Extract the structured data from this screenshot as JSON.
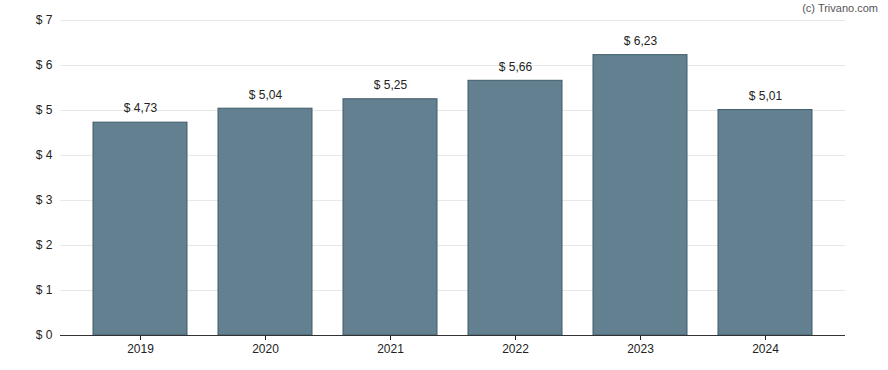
{
  "chart_data": {
    "type": "bar",
    "annotations": [
      "(c) Trivano.com"
    ],
    "categories": [
      "2019",
      "2020",
      "2021",
      "2022",
      "2023",
      "2024"
    ],
    "values": [
      4.73,
      5.04,
      5.25,
      5.66,
      6.23,
      5.01
    ],
    "value_labels": [
      "$ 4,73",
      "$ 5,04",
      "$ 5,25",
      "$ 5,66",
      "$ 6,23",
      "$ 5,01"
    ],
    "data_labels": true,
    "color": "#62808f",
    "ylim": [
      0,
      7
    ],
    "yticks": [
      {
        "value": 0,
        "label": "$ 0"
      },
      {
        "value": 1,
        "label": "$ 1"
      },
      {
        "value": 2,
        "label": "$ 2"
      },
      {
        "value": 3,
        "label": "$ 3"
      },
      {
        "value": 4,
        "label": "$ 4"
      },
      {
        "value": 5,
        "label": "$ 5"
      },
      {
        "value": 6,
        "label": "$ 6"
      },
      {
        "value": 7,
        "label": "$ 7"
      }
    ],
    "grid": true
  }
}
